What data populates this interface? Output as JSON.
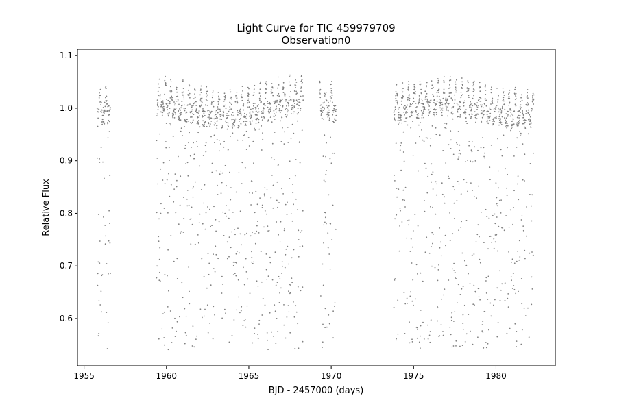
{
  "chart_data": {
    "type": "scatter",
    "title": "Light Curve for TIC 459979709",
    "subtitle": "Observation0",
    "xlabel": "BJD - 2457000 (days)",
    "ylabel": "Relative Flux",
    "xlim": [
      1954.6,
      1983.6
    ],
    "ylim": [
      0.51,
      1.112
    ],
    "x_ticks": [
      1955,
      1960,
      1965,
      1970,
      1975,
      1980
    ],
    "y_ticks": [
      0.6,
      0.7,
      0.8,
      0.9,
      1.0,
      1.1
    ],
    "x_tick_labels": [
      "1955",
      "1960",
      "1965",
      "1970",
      "1975",
      "1980"
    ],
    "y_tick_labels": [
      "0.6",
      "0.7",
      "0.8",
      "0.9",
      "1.0",
      "1.1"
    ],
    "grid": false,
    "legend": "none",
    "marker_color": "#808080",
    "series": [
      {
        "segments": [
          {
            "x_start": 1955.8,
            "x_end": 1956.6
          },
          {
            "x_start": 1959.4,
            "x_end": 1968.3
          },
          {
            "x_start": 1969.3,
            "x_end": 1970.3
          },
          {
            "x_start": 1973.8,
            "x_end": 1982.3
          }
        ],
        "baseline_flux_range": [
          0.96,
          1.08
        ],
        "min_flux": 0.54,
        "pulsation_period_days": 0.36
      }
    ]
  }
}
